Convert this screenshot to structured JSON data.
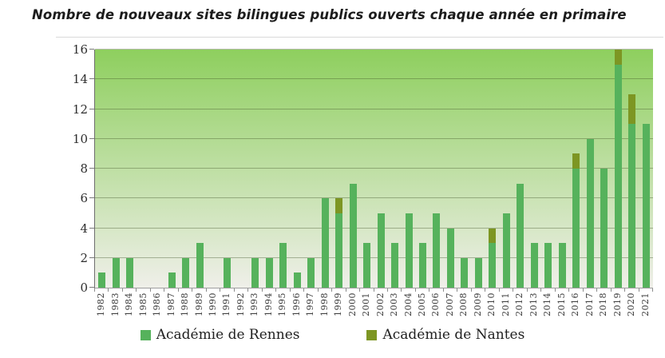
{
  "title": "Nombre de nouveaux sites bilingues publics ouverts chaque année en primaire",
  "chart_data": {
    "type": "bar",
    "stacked": true,
    "categories": [
      "1982",
      "1983",
      "1984",
      "1985",
      "1986",
      "1987",
      "1988",
      "1989",
      "1990",
      "1991",
      "1992",
      "1993",
      "1994",
      "1995",
      "1996",
      "1997",
      "1998",
      "1999",
      "2000",
      "2001",
      "2002",
      "2003",
      "2004",
      "2005",
      "2006",
      "2007",
      "2008",
      "2009",
      "2010",
      "2011",
      "2012",
      "2013",
      "2014",
      "2015",
      "2016",
      "2017",
      "2018",
      "2019",
      "2020",
      "2021"
    ],
    "series": [
      {
        "name": "Académie de Rennes",
        "color": "#56b25c",
        "values": [
          1,
          2,
          2,
          0,
          0,
          1,
          2,
          3,
          0,
          2,
          0,
          2,
          2,
          3,
          1,
          2,
          6,
          5,
          7,
          3,
          5,
          3,
          5,
          3,
          5,
          4,
          2,
          2,
          3,
          5,
          7,
          3,
          3,
          3,
          8,
          10,
          8,
          15,
          11,
          11
        ]
      },
      {
        "name": "Académie de Nantes",
        "color": "#7d9623",
        "values": [
          0,
          0,
          0,
          0,
          0,
          0,
          0,
          0,
          0,
          0,
          0,
          0,
          0,
          0,
          0,
          0,
          0,
          1,
          0,
          0,
          0,
          0,
          0,
          0,
          0,
          0,
          0,
          0,
          1,
          0,
          0,
          0,
          0,
          0,
          1,
          0,
          0,
          1,
          2,
          0
        ]
      }
    ],
    "title": "Nombre de nouveaux sites bilingues publics ouverts chaque année en primaire",
    "xlabel": "",
    "ylabel": "",
    "ylim": [
      0,
      16
    ],
    "yticks": [
      0,
      2,
      4,
      6,
      8,
      10,
      12,
      14,
      16
    ],
    "grid": true,
    "legend_position": "bottom",
    "plot_background_top": "#8ecf5e",
    "plot_background_bottom": "#efefe9"
  },
  "legend": {
    "items": [
      {
        "label": "Académie de Rennes",
        "color": "#56b25c"
      },
      {
        "label": "Académie de Nantes",
        "color": "#7d9623"
      }
    ]
  }
}
